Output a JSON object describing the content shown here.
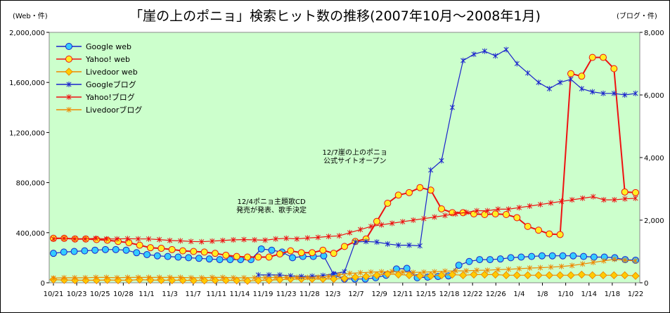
{
  "chart_data": {
    "type": "line",
    "title": "「崖の上のポニョ」検索ヒット数の推移(2007年10月〜2008年1月)",
    "left_unit": "(Web・件)",
    "right_unit": "(ブログ・件)",
    "ylim_left": [
      0,
      2000000
    ],
    "ylim_right": [
      0,
      8000
    ],
    "left_ticks": [
      "0",
      "400,000",
      "800,000",
      "1,200,000",
      "1,600,000",
      "2,000,000"
    ],
    "right_ticks": [
      "0",
      "2,000",
      "4,000",
      "6,000",
      "8,000"
    ],
    "x_tick_labels": [
      "10/21",
      "10/23",
      "10/25",
      "10/28",
      "11/1",
      "11/3",
      "11/7",
      "11/11",
      "11/14",
      "11/19",
      "11/23",
      "11/28",
      "12/3",
      "12/7",
      "12/9",
      "12/11",
      "12/15",
      "12/18",
      "12/22",
      "12/26",
      "1/4",
      "1/8",
      "1/10",
      "1/14",
      "1/18",
      "1/22"
    ],
    "grid": false,
    "legend_position": "top-left",
    "annotations": [
      {
        "lines": [
          "12/7崖の上のポニョ",
          "公式サイトオープン"
        ],
        "anchor_index": 29
      },
      {
        "lines": [
          "12/4ポニョ主題歌CD",
          "発売が発表、歌手決定"
        ],
        "anchor_index": 23
      }
    ],
    "series": [
      {
        "name": "Google web",
        "axis": "left",
        "color": "#1a22cc",
        "marker_fill": "#33ccff",
        "marker": "circle",
        "values": [
          235000,
          245000,
          250000,
          255000,
          260000,
          265000,
          265000,
          260000,
          240000,
          225000,
          215000,
          210000,
          205000,
          200000,
          195000,
          190000,
          185000,
          185000,
          185000,
          185000,
          270000,
          260000,
          245000,
          200000,
          210000,
          210000,
          215000,
          60000,
          30000,
          30000,
          30000,
          40000,
          60000,
          110000,
          115000,
          40000,
          45000,
          50000,
          55000,
          140000,
          170000,
          185000,
          185000,
          190000,
          200000,
          205000,
          210000,
          215000,
          215000,
          215000,
          215000,
          210000,
          205000,
          205000,
          200000,
          185000,
          180000
        ]
      },
      {
        "name": "Yahoo! web",
        "axis": "left",
        "color": "#ee1111",
        "marker_fill": "#ffee22",
        "marker": "circle",
        "values": [
          355000,
          355000,
          350000,
          350000,
          345000,
          340000,
          330000,
          320000,
          300000,
          280000,
          275000,
          265000,
          255000,
          250000,
          245000,
          235000,
          220000,
          210000,
          205000,
          205000,
          205000,
          230000,
          255000,
          240000,
          240000,
          260000,
          235000,
          290000,
          330000,
          350000,
          490000,
          635000,
          700000,
          720000,
          760000,
          740000,
          590000,
          560000,
          560000,
          550000,
          545000,
          550000,
          545000,
          520000,
          450000,
          420000,
          390000,
          385000,
          1670000,
          1650000,
          1800000,
          1800000,
          1710000,
          725000,
          720000
        ]
      },
      {
        "name": "Livedoor web",
        "axis": "left",
        "color": "#ee8800",
        "marker_fill": "#ffcc00",
        "marker": "diamond",
        "values": [
          25000,
          22000,
          20000,
          20000,
          20000,
          22000,
          20000,
          20000,
          25000,
          22000,
          20000,
          20000,
          20000,
          18000,
          18000,
          20000,
          20000,
          18000,
          15000,
          18000,
          20000,
          25000,
          30000,
          30000,
          30000,
          30000,
          30000,
          35000,
          45000,
          50000,
          60000,
          70000,
          65000,
          60000,
          55000,
          55000,
          60000,
          65000,
          60000,
          65000,
          65000,
          65000,
          60000,
          60000,
          60000,
          60000,
          60000,
          60000,
          60000,
          65000,
          60000,
          60000,
          60000,
          60000,
          55000
        ]
      },
      {
        "name": "Googleブログ",
        "axis": "right",
        "color": "#1a22cc",
        "marker": "star",
        "values": [
          null,
          null,
          null,
          null,
          null,
          null,
          null,
          null,
          null,
          null,
          null,
          null,
          null,
          null,
          null,
          null,
          null,
          null,
          null,
          250,
          250,
          250,
          220,
          200,
          210,
          230,
          290,
          350,
          1300,
          1320,
          1300,
          1240,
          1200,
          1200,
          1180,
          3600,
          3900,
          5600,
          7100,
          7300,
          7400,
          7250,
          7450,
          7000,
          6700,
          6400,
          6200,
          6400,
          6500,
          6200,
          6100,
          6050,
          6050,
          6000,
          6050
        ]
      },
      {
        "name": "Yahoo!ブログ",
        "axis": "right",
        "color": "#ee1111",
        "marker": "star",
        "values": [
          1400,
          1420,
          1400,
          1400,
          1420,
          1400,
          1400,
          1410,
          1400,
          1400,
          1380,
          1350,
          1340,
          1320,
          1310,
          1330,
          1350,
          1370,
          1380,
          1370,
          1360,
          1400,
          1420,
          1400,
          1430,
          1450,
          1480,
          1500,
          1600,
          1700,
          1800,
          1850,
          1900,
          1950,
          2000,
          2050,
          2100,
          2150,
          2200,
          2250,
          2300,
          2300,
          2350,
          2350,
          2400,
          2450,
          2500,
          2550,
          2600,
          2650,
          2700,
          2750,
          2650,
          2650,
          2680,
          2700
        ]
      },
      {
        "name": "Livedoorブログ",
        "axis": "right",
        "color": "#ee8800",
        "marker": "star",
        "values": [
          150,
          160,
          160,
          160,
          170,
          170,
          160,
          170,
          170,
          170,
          170,
          170,
          170,
          160,
          160,
          170,
          170,
          160,
          160,
          160,
          160,
          170,
          170,
          170,
          170,
          180,
          200,
          250,
          300,
          320,
          340,
          350,
          360,
          340,
          330,
          340,
          350,
          370,
          380,
          380,
          400,
          400,
          420,
          430,
          450,
          470,
          480,
          500,
          520,
          550,
          600,
          650,
          700,
          750,
          720,
          700
        ]
      }
    ]
  }
}
